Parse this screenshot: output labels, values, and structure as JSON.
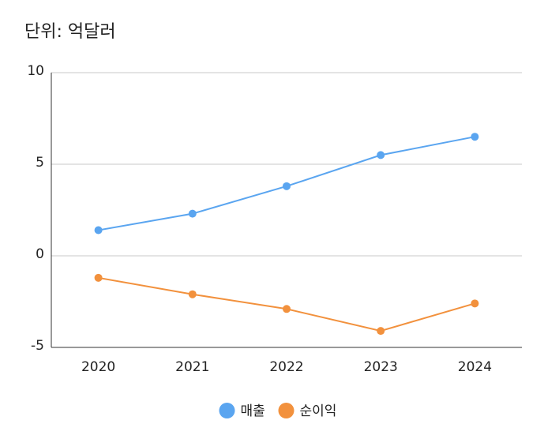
{
  "chart_data": {
    "type": "line",
    "title": "단위: 억달러",
    "categories": [
      "2020",
      "2021",
      "2022",
      "2023",
      "2024"
    ],
    "series": [
      {
        "name": "매출",
        "color": "#5aa5f0",
        "values": [
          1.4,
          2.3,
          3.8,
          5.5,
          6.5
        ]
      },
      {
        "name": "순이익",
        "color": "#f2913d",
        "values": [
          -1.2,
          -2.1,
          -2.9,
          -4.1,
          -2.6
        ]
      }
    ],
    "ylim": [
      -5,
      10
    ],
    "yticks": [
      10,
      5,
      0,
      -5
    ],
    "grid": true,
    "legend_position": "bottom-center"
  }
}
